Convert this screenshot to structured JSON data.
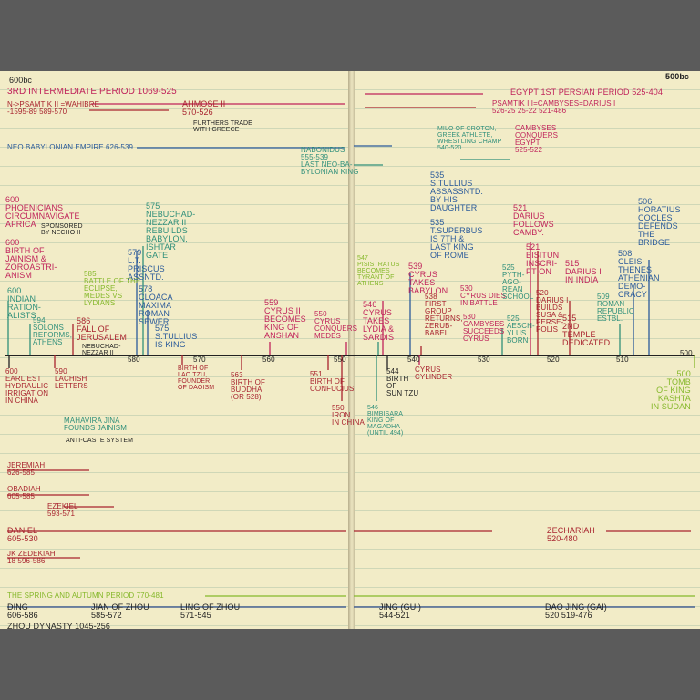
{
  "corner": {
    "left": "600bc",
    "right": "500bc"
  },
  "header_left": {
    "period": "3RD INTERMEDIATE PERIOD 1069-525",
    "psamtik": "N->PSAMTIK II =WAHIBRE\n-1595-89 589-570",
    "ahmose": "AHMOSE II\n570-526",
    "ahmose_note": "FURTHERS TRADE\nWITH GREECE",
    "neo_babylonian": "NEO BABYLONIAN EMPIRE 626-539"
  },
  "header_right": {
    "egypt": "EGYPT 1ST PERSIAN PERIOD 525-404",
    "psamtik3": "PSAMTIK III=CAMBYSES=DARIUS I\n526-25 25-22 521-486",
    "nabonidus": "NABONIDUS\n555-539\nLAST NEO-BA-\nBYLONIAN KING",
    "milo": "MILO OF CROTON,\nGREEK ATHLETE,\nWRESTLING CHAMP\n540-520",
    "cambyses_egypt": "CAMBYSES\nCONQUERS\nEGYPT\n525-522"
  },
  "axis": {
    "ticks": [
      "580",
      "570",
      "560",
      "550",
      "540",
      "530",
      "520",
      "510",
      "500"
    ]
  },
  "events_above": {
    "phoenicians": "600\nPHOENICIANS\nCIRCUMNAVIGATE\nAFRICA",
    "sponsored": "SPONSORED\nBY NECHO II",
    "jainism": "600\nBIRTH OF\nJAINISM &\nZOROASTRI-\nANISM",
    "indian": "600\nINDIAN\nRATION-\nALISTS",
    "solons": "594\nSOLONS\nREFORMS,\nATHENS",
    "battle": "585\nBATTLE OF THE\nECLIPSE,\nMEDES VS\nLYDIANS",
    "jerusalem": "586\nFALL OF\nJERUSALEM",
    "jerusalem_note": "NEBUCHAD-\nNEZZAR II",
    "nebuchad": "575\nNEBUCHAD-\nNEZZAR II\nREBUILDS\nBABYLON,\nISHTAR\nGATE",
    "priscus": "579\nL.T.\nPRISCUS\nASSNTD.",
    "cloaca": "578\nCLOACA\nMAXIMA\nROMAN\nSEWER",
    "servius": "575\nS.TULLIUS\nIS KING",
    "cyrus2": "559\nCYRUS II\nBECOMES\nKING OF\nANSHAN",
    "cyrus_medes": "550\nCYRUS\nCONQUERS\nMEDES",
    "tullius_assass": "535\nS.TULLIUS\nASSASSNTD.\nBY HIS\nDAUGHTER",
    "superbus": "535\nT.SUPERBUS\nIS 7TH &\nLAST KING\nOF ROME",
    "pisistratus": "547\nPISISTRATUS\nBECOMES\nTYRANT OF\nATHENS",
    "cyrus_lydia": "546\nCYRUS\nTAKES\nLYDIA &\nSARDIS",
    "cyrus_babylon": "539\nCYRUS\nTAKES\nBABYLON",
    "first_group": "538\nFIRST\nGROUP\nRETURNS,\nZERUB-\nBABEL",
    "cyrus_dies": "530\nCYRUS DIES\nIN BATTLE",
    "cambyses_succ": "530\nCAMBYSES\nSUCCEEDS\nCYRUS",
    "pythagorean": "525\nPYTH-\nAGO-\nREAN\nSCHOOL",
    "aeschylus": "525\nAESCH-\nYLUS\nBORN",
    "darius_follows": "521\nDARIUS\nFOLLOWS\nCAMBY.",
    "bisitun": "521\nBISITUN\nINSCRI-\nPTION",
    "darius_builds": "520\nDARIUS I\nBUILDS\nSUSA &\nPERSE-\nPOLIS",
    "darius_india": "515\nDARIUS I\nIN INDIA",
    "temple": "515\n2ND\nTEMPLE\nDEDICATED",
    "roman_republic": "509\nROMAN\nREPUBLIC\nESTBL.",
    "cleisthenes": "508\nCLEIS-\nTHENES\nATHENIAN\nDEMO-\nCRACY",
    "horatius": "506\nHORATIUS\nCOCLES\nDEFENDS\nTHE\nBRIDGE"
  },
  "events_below": {
    "irrigation": "600\nEARLIEST\nHYDRAULIC\nIRRIGATION\nIN CHINA",
    "lachish": "590\nLACHISH\nLETTERS",
    "laotzu": "BIRTH OF\nLAO TZU,\nFOUNDER\nOF DAOISM",
    "buddha": "563\nBIRTH OF\nBUDDHA\n(OR 528)",
    "confucius": "551\nBIRTH OF\nCONFUCIUS",
    "iron": "550\nIRON\nIN CHINA",
    "suntzu": "544\nBIRTH\nOF\nSUN TZU",
    "cylinder": "CYRUS\nCYLINDER",
    "bimbisara": "546\nBIMBISARA\nKING OF\nMAGADHA\n(UNTIL 494)",
    "mahavira": "MAHAVIRA JINA\nFOUNDS JAINISM",
    "anticaste": "ANTI-CASTE SYSTEM",
    "kashta": "500\nTOMB\nOF KING\nKASHTA\nIN SUDAN"
  },
  "prophets": {
    "jeremiah": "JEREMIAH\n626-585",
    "obadiah": "OBADIAH\n605-585",
    "ezekiel": "EZEKIEL\n593-571",
    "daniel": "DANIEL\n605-530",
    "zedekiah": "JK ZEDEKIAH\n18 596-586",
    "zechariah": "ZECHARIAH\n520-480"
  },
  "china": {
    "spring_autumn": "THE SPRING AND AUTUMN PERIOD 770-481",
    "ding": "DING\n606-586",
    "jian": "JIAN OF ZHOU\n585-572",
    "ling": "LING OF ZHOU\n571-545",
    "jing1": "JING (GUI)\n544-521",
    "jing2": "DAO JING (GAI)\n520 519-476",
    "zhou": "ZHOU DYNASTY 1045-256"
  }
}
